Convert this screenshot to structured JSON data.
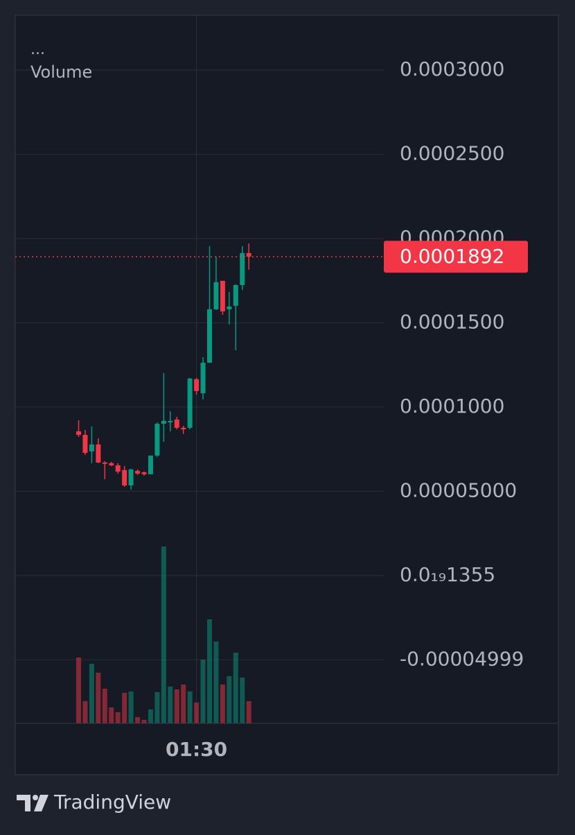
{
  "chart_data": {
    "type": "candlestick",
    "menu": "...",
    "categories": [
      null,
      null,
      null,
      null,
      null,
      null,
      null,
      null,
      null,
      null,
      null,
      null,
      null,
      null,
      null,
      null,
      null,
      null,
      "01:30",
      null,
      null,
      null,
      null,
      null,
      null,
      null,
      null
    ],
    "open": [
      8.56e-05,
      8.35e-05,
      7.37e-05,
      7.78e-05,
      6.71e-05,
      6.67e-05,
      6.54e-05,
      6.26e-05,
      5.35e-05,
      6.21e-05,
      6.13e-05,
      6.01e-05,
      7.12e-05,
      9.01e-05,
      9.09e-05,
      9.26e-05,
      8.77e-05,
      8.77e-05,
      0.0001165,
      0.0001082,
      0.0001263,
      0.000158,
      0.0001749,
      0.000158,
      0.0001601,
      0.0001724,
      0.0001914
    ],
    "high": [
      9.22e-05,
      8.64e-05,
      8.85e-05,
      8.15e-05,
      6.79e-05,
      6.75e-05,
      6.67e-05,
      6.5e-05,
      6.34e-05,
      6.3e-05,
      6.17e-05,
      7.12e-05,
      9.09e-05,
      0.0001202,
      9.75e-05,
      9.42e-05,
      8.89e-05,
      0.0001173,
      0.0001173,
      0.0001296,
      0.0001955,
      0.0001893,
      0.0001749,
      0.0001683,
      0.0001728,
      0.0001955,
      0.0001971
    ],
    "low": [
      8.23e-05,
      7.16e-05,
      6.67e-05,
      6.67e-05,
      5.72e-05,
      6.5e-05,
      6.05e-05,
      5.27e-05,
      5.1e-05,
      5.97e-05,
      5.93e-05,
      6.01e-05,
      7.04e-05,
      7.94e-05,
      8.56e-05,
      8.68e-05,
      8.4e-05,
      8.68e-05,
      0.0001074,
      0.0001045,
      0.0001263,
      0.0001576,
      0.0001547,
      0.000149,
      0.0001337,
      0.0001695,
      0.0001815
    ],
    "close": [
      8.35e-05,
      7.28e-05,
      7.78e-05,
      6.71e-05,
      6.63e-05,
      6.54e-05,
      6.17e-05,
      5.35e-05,
      6.3e-05,
      6.05e-05,
      6.01e-05,
      7.12e-05,
      9.01e-05,
      9.18e-05,
      9.18e-05,
      8.77e-05,
      8.68e-05,
      0.0001169,
      0.0001095,
      0.0001263,
      0.000158,
      0.0001741,
      0.0001568,
      0.0001597,
      0.0001724,
      0.0001914,
      0.0001892
    ],
    "up_color": "#089981",
    "down_color": "#f23645",
    "volume": {
      "name": "Volume",
      "values": [
        95,
        32,
        86,
        73,
        50,
        23,
        16,
        44,
        46,
        9,
        5,
        20,
        45,
        255,
        53,
        49,
        56,
        46,
        30,
        92,
        150,
        118,
        56,
        68,
        102,
        66,
        32
      ],
      "ylim": [
        0,
        1021
      ]
    },
    "ylim": [
      -8.77e-05,
      0.0003325
    ],
    "yticks": [
      {
        "value": 0.0003,
        "label": "0.0003000"
      },
      {
        "value": 0.00025,
        "label": "0.0002500"
      },
      {
        "value": 0.0002,
        "label": "0.0002000"
      },
      {
        "value": 0.00015,
        "label": "0.0001500"
      },
      {
        "value": 0.0001,
        "label": "0.0001000"
      },
      {
        "value": 5e-05,
        "label": "0.00005000"
      },
      {
        "value": 1.355e-20,
        "label": "0.0₁₉1355"
      },
      -4.999e-05
    ],
    "grid": true
  },
  "footer": {
    "brand": "TradingView"
  }
}
